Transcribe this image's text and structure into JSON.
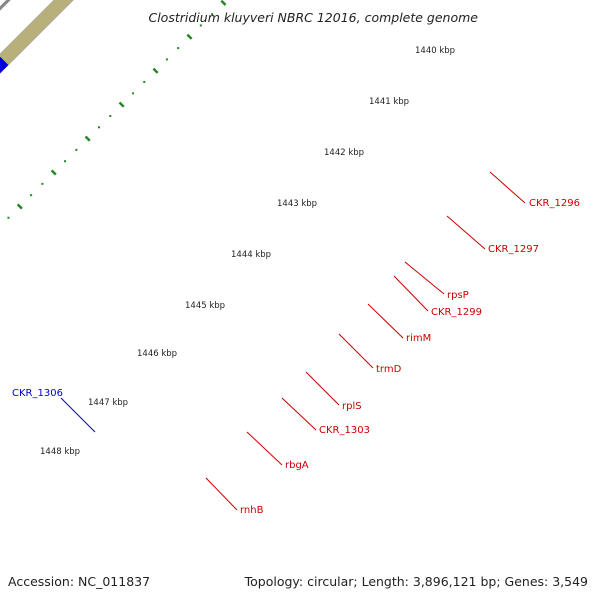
{
  "title": "Clostridium kluyveri NBRC 12016, complete genome",
  "footer": {
    "accession": "Accession: NC_011837",
    "stats": "Topology: circular; Length: 3,896,121 bp; Genes: 3,549"
  },
  "kbp_ticks": [
    "1440 kbp",
    "1441 kbp",
    "1442 kbp",
    "1443 kbp",
    "1444 kbp",
    "1445 kbp",
    "1446 kbp",
    "1447 kbp",
    "1448 kbp"
  ],
  "gene_labels": [
    {
      "text": "CKR_1296",
      "color": "#cc0000"
    },
    {
      "text": "CKR_1297",
      "color": "#cc0000"
    },
    {
      "text": "rpsP",
      "color": "#cc0000"
    },
    {
      "text": "CKR_1299",
      "color": "#cc0000"
    },
    {
      "text": "rimM",
      "color": "#cc0000"
    },
    {
      "text": "trmD",
      "color": "#cc0000"
    },
    {
      "text": "rplS",
      "color": "#cc0000"
    },
    {
      "text": "CKR_1303",
      "color": "#cc0000"
    },
    {
      "text": "rbgA",
      "color": "#cc0000"
    },
    {
      "text": "rnhB",
      "color": "#cc0000"
    },
    {
      "text": "CKR_1306",
      "color": "#0000cc"
    }
  ],
  "colors": {
    "forward_cds": "#ee0000",
    "feature_blue": "#0000dd",
    "feature_magenta": "#ee1199",
    "feature_olive": "#b8b07a",
    "feature_khaki": "#ede4a4",
    "cog_green": "#aaff33",
    "cog_salmon": "#f09090",
    "cog_gray": "#c8c8c8",
    "cog_dark": "#666666",
    "dot_green": "#228822",
    "backbone": "#888888"
  }
}
